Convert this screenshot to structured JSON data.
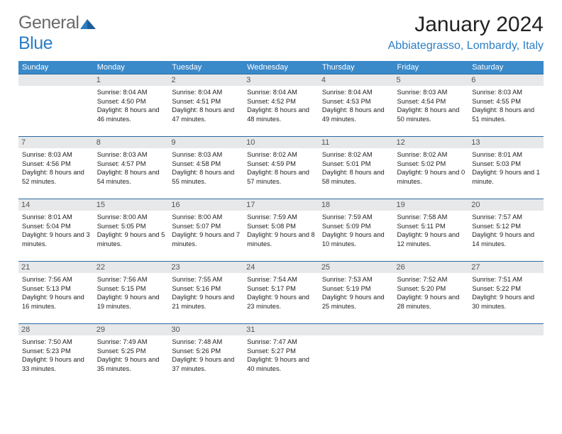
{
  "logo": {
    "text1": "General",
    "text2": "Blue"
  },
  "title": "January 2024",
  "location": "Abbiategrasso, Lombardy, Italy",
  "header_bg": "#3a89c9",
  "cell_border": "#2a6aa3",
  "daybar_bg": "#e7e8e9",
  "weekdays": [
    "Sunday",
    "Monday",
    "Tuesday",
    "Wednesday",
    "Thursday",
    "Friday",
    "Saturday"
  ],
  "weeks": [
    [
      null,
      {
        "n": "1",
        "sr": "8:04 AM",
        "ss": "4:50 PM",
        "dl": "8 hours and 46 minutes."
      },
      {
        "n": "2",
        "sr": "8:04 AM",
        "ss": "4:51 PM",
        "dl": "8 hours and 47 minutes."
      },
      {
        "n": "3",
        "sr": "8:04 AM",
        "ss": "4:52 PM",
        "dl": "8 hours and 48 minutes."
      },
      {
        "n": "4",
        "sr": "8:04 AM",
        "ss": "4:53 PM",
        "dl": "8 hours and 49 minutes."
      },
      {
        "n": "5",
        "sr": "8:03 AM",
        "ss": "4:54 PM",
        "dl": "8 hours and 50 minutes."
      },
      {
        "n": "6",
        "sr": "8:03 AM",
        "ss": "4:55 PM",
        "dl": "8 hours and 51 minutes."
      }
    ],
    [
      {
        "n": "7",
        "sr": "8:03 AM",
        "ss": "4:56 PM",
        "dl": "8 hours and 52 minutes."
      },
      {
        "n": "8",
        "sr": "8:03 AM",
        "ss": "4:57 PM",
        "dl": "8 hours and 54 minutes."
      },
      {
        "n": "9",
        "sr": "8:03 AM",
        "ss": "4:58 PM",
        "dl": "8 hours and 55 minutes."
      },
      {
        "n": "10",
        "sr": "8:02 AM",
        "ss": "4:59 PM",
        "dl": "8 hours and 57 minutes."
      },
      {
        "n": "11",
        "sr": "8:02 AM",
        "ss": "5:01 PM",
        "dl": "8 hours and 58 minutes."
      },
      {
        "n": "12",
        "sr": "8:02 AM",
        "ss": "5:02 PM",
        "dl": "9 hours and 0 minutes."
      },
      {
        "n": "13",
        "sr": "8:01 AM",
        "ss": "5:03 PM",
        "dl": "9 hours and 1 minute."
      }
    ],
    [
      {
        "n": "14",
        "sr": "8:01 AM",
        "ss": "5:04 PM",
        "dl": "9 hours and 3 minutes."
      },
      {
        "n": "15",
        "sr": "8:00 AM",
        "ss": "5:05 PM",
        "dl": "9 hours and 5 minutes."
      },
      {
        "n": "16",
        "sr": "8:00 AM",
        "ss": "5:07 PM",
        "dl": "9 hours and 7 minutes."
      },
      {
        "n": "17",
        "sr": "7:59 AM",
        "ss": "5:08 PM",
        "dl": "9 hours and 8 minutes."
      },
      {
        "n": "18",
        "sr": "7:59 AM",
        "ss": "5:09 PM",
        "dl": "9 hours and 10 minutes."
      },
      {
        "n": "19",
        "sr": "7:58 AM",
        "ss": "5:11 PM",
        "dl": "9 hours and 12 minutes."
      },
      {
        "n": "20",
        "sr": "7:57 AM",
        "ss": "5:12 PM",
        "dl": "9 hours and 14 minutes."
      }
    ],
    [
      {
        "n": "21",
        "sr": "7:56 AM",
        "ss": "5:13 PM",
        "dl": "9 hours and 16 minutes."
      },
      {
        "n": "22",
        "sr": "7:56 AM",
        "ss": "5:15 PM",
        "dl": "9 hours and 19 minutes."
      },
      {
        "n": "23",
        "sr": "7:55 AM",
        "ss": "5:16 PM",
        "dl": "9 hours and 21 minutes."
      },
      {
        "n": "24",
        "sr": "7:54 AM",
        "ss": "5:17 PM",
        "dl": "9 hours and 23 minutes."
      },
      {
        "n": "25",
        "sr": "7:53 AM",
        "ss": "5:19 PM",
        "dl": "9 hours and 25 minutes."
      },
      {
        "n": "26",
        "sr": "7:52 AM",
        "ss": "5:20 PM",
        "dl": "9 hours and 28 minutes."
      },
      {
        "n": "27",
        "sr": "7:51 AM",
        "ss": "5:22 PM",
        "dl": "9 hours and 30 minutes."
      }
    ],
    [
      {
        "n": "28",
        "sr": "7:50 AM",
        "ss": "5:23 PM",
        "dl": "9 hours and 33 minutes."
      },
      {
        "n": "29",
        "sr": "7:49 AM",
        "ss": "5:25 PM",
        "dl": "9 hours and 35 minutes."
      },
      {
        "n": "30",
        "sr": "7:48 AM",
        "ss": "5:26 PM",
        "dl": "9 hours and 37 minutes."
      },
      {
        "n": "31",
        "sr": "7:47 AM",
        "ss": "5:27 PM",
        "dl": "9 hours and 40 minutes."
      },
      null,
      null,
      null
    ]
  ],
  "labels": {
    "sunrise": "Sunrise:",
    "sunset": "Sunset:",
    "daylight": "Daylight:"
  }
}
